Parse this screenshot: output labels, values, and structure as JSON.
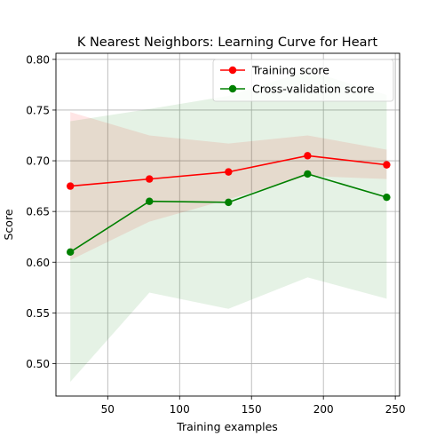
{
  "chart_data": {
    "type": "line",
    "title": "K Nearest Neighbors: Learning Curve for Heart",
    "xlabel": "Training examples",
    "ylabel": "Score",
    "xlim": [
      14,
      253
    ],
    "ylim": [
      0.468,
      0.806
    ],
    "x_ticks": [
      50,
      100,
      150,
      200,
      250
    ],
    "y_ticks": [
      0.5,
      0.55,
      0.6,
      0.65,
      0.7,
      0.75,
      0.8
    ],
    "x_tick_labels": [
      "50",
      "100",
      "150",
      "200",
      "250"
    ],
    "y_tick_labels": [
      "0.50",
      "0.55",
      "0.60",
      "0.65",
      "0.70",
      "0.75",
      "0.80"
    ],
    "grid": true,
    "legend_position": "top-right",
    "x": [
      24,
      79,
      134,
      189,
      244
    ],
    "series": [
      {
        "name": "Training score",
        "color": "#ff0000",
        "values": [
          0.675,
          0.682,
          0.689,
          0.705,
          0.696
        ],
        "band_lower": [
          0.602,
          0.64,
          0.662,
          0.685,
          0.682
        ],
        "band_upper": [
          0.748,
          0.725,
          0.717,
          0.725,
          0.711
        ]
      },
      {
        "name": "Cross-validation score",
        "color": "#008000",
        "values": [
          0.61,
          0.66,
          0.659,
          0.687,
          0.664
        ],
        "band_lower": [
          0.482,
          0.57,
          0.554,
          0.585,
          0.564
        ],
        "band_upper": [
          0.739,
          0.751,
          0.764,
          0.789,
          0.765
        ]
      }
    ]
  }
}
